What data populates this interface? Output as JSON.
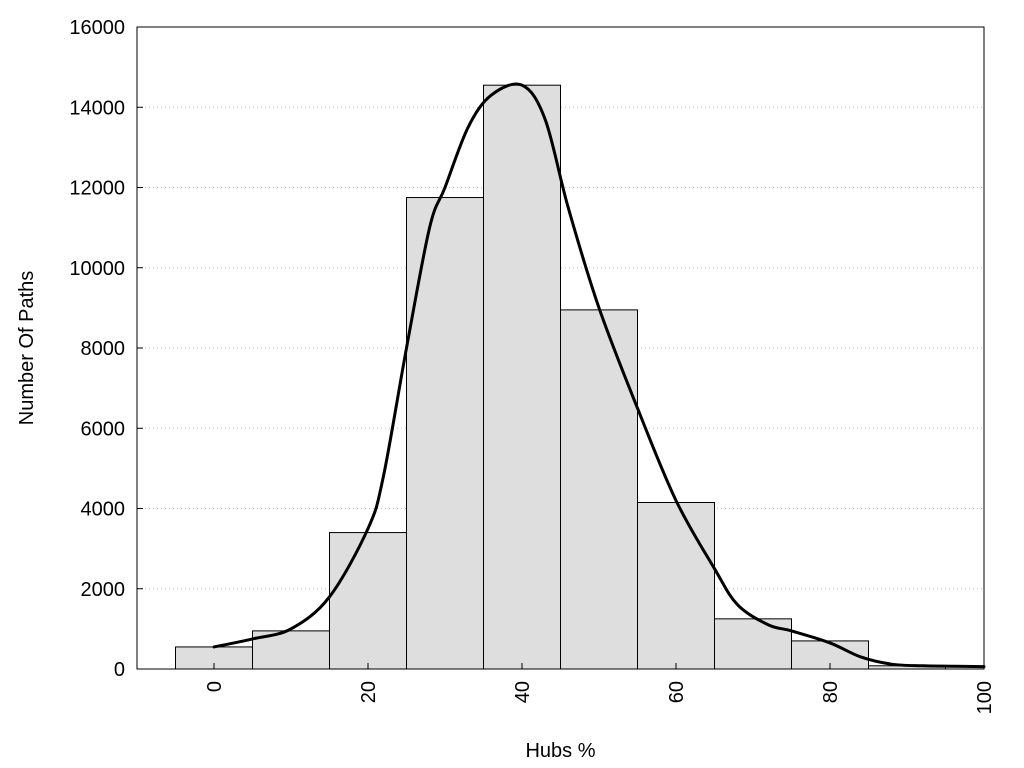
{
  "chart_data": {
    "type": "bar",
    "xlabel": "Hubs %",
    "ylabel": "Number Of Paths",
    "xlim": [
      -10,
      100
    ],
    "ylim": [
      0,
      16000
    ],
    "x_ticks": [
      0,
      20,
      40,
      60,
      80,
      100
    ],
    "y_ticks": [
      0,
      2000,
      4000,
      6000,
      8000,
      10000,
      12000,
      14000,
      16000
    ],
    "grid": "horizontal dotted",
    "bar_width": 10,
    "bar_color": "#dedede",
    "line_color": "#000000",
    "bars": [
      {
        "x": 0,
        "value": 550
      },
      {
        "x": 10,
        "value": 950
      },
      {
        "x": 20,
        "value": 3400
      },
      {
        "x": 30,
        "value": 11750
      },
      {
        "x": 40,
        "value": 14550
      },
      {
        "x": 50,
        "value": 8950
      },
      {
        "x": 60,
        "value": 4150
      },
      {
        "x": 70,
        "value": 1250
      },
      {
        "x": 80,
        "value": 700
      },
      {
        "x": 90,
        "value": 80
      }
    ],
    "density_curve": [
      [
        0,
        550
      ],
      [
        5,
        750
      ],
      [
        10,
        1000
      ],
      [
        15,
        1800
      ],
      [
        20,
        3500
      ],
      [
        22,
        4800
      ],
      [
        25,
        8000
      ],
      [
        28,
        11000
      ],
      [
        30,
        12000
      ],
      [
        33,
        13500
      ],
      [
        36,
        14300
      ],
      [
        40,
        14550
      ],
      [
        43,
        13700
      ],
      [
        46,
        11500
      ],
      [
        50,
        9000
      ],
      [
        55,
        6500
      ],
      [
        60,
        4200
      ],
      [
        65,
        2500
      ],
      [
        68,
        1600
      ],
      [
        72,
        1100
      ],
      [
        75,
        950
      ],
      [
        80,
        650
      ],
      [
        84,
        300
      ],
      [
        88,
        120
      ],
      [
        92,
        80
      ],
      [
        96,
        70
      ],
      [
        100,
        60
      ]
    ]
  }
}
